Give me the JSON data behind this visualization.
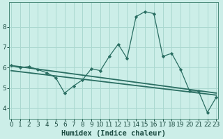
{
  "xlabel": "Humidex (Indice chaleur)",
  "bg_color": "#cceee8",
  "grid_color": "#aad8d0",
  "line_color": "#2a6e62",
  "x_main": [
    0,
    1,
    2,
    3,
    4,
    5,
    6,
    7,
    8,
    9,
    10,
    11,
    12,
    13,
    14,
    15,
    16,
    17,
    18,
    19,
    20,
    21,
    22,
    23
  ],
  "y_main": [
    6.1,
    6.0,
    6.05,
    5.9,
    5.75,
    5.5,
    4.75,
    5.1,
    5.4,
    5.95,
    5.85,
    6.55,
    7.15,
    6.45,
    8.5,
    8.75,
    8.65,
    6.55,
    6.7,
    5.9,
    4.85,
    4.85,
    3.8,
    4.55
  ],
  "trend1_x": [
    0,
    23
  ],
  "trend1_y": [
    6.1,
    4.75
  ],
  "trend2_x": [
    0,
    23
  ],
  "trend2_y": [
    5.85,
    4.65
  ],
  "xlim": [
    -0.2,
    23.2
  ],
  "ylim": [
    3.5,
    9.2
  ],
  "xticks": [
    0,
    1,
    2,
    3,
    4,
    5,
    6,
    7,
    8,
    9,
    10,
    11,
    12,
    13,
    14,
    15,
    16,
    17,
    18,
    19,
    20,
    21,
    22,
    23
  ],
  "yticks": [
    4,
    5,
    6,
    7,
    8
  ],
  "tick_fontsize": 6.5,
  "label_fontsize": 7.5
}
